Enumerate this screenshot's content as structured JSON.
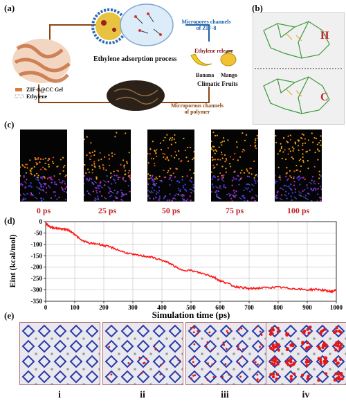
{
  "panels": {
    "a": "(a)",
    "b": "(b)",
    "c": "(c)",
    "d": "(d)",
    "e": "(e)"
  },
  "panel_a": {
    "micropores_label_line1": "Micropores channels",
    "micropores_label_line2": "of ZIF-8",
    "process_title": "Ethylene adsorption process",
    "release_label": "Ethylene release",
    "banana": "Banana",
    "mango": "Mango",
    "climatic_fruits": "Climatic Fruits",
    "legend_gel": "ZIF-8@CC Gel",
    "legend_ethylene": "Ethylene",
    "polymer_label_line1": "Microporous channels",
    "polymer_label_line2": "of polymer"
  },
  "panel_b": {
    "label_top": "H",
    "label_bottom": "C"
  },
  "panel_c": {
    "times": [
      "0 ps",
      "25 ps",
      "50 ps",
      "75 ps",
      "100 ps"
    ]
  },
  "panel_e": {
    "labels": [
      "i",
      "ii",
      "iii",
      "iv"
    ]
  },
  "colors": {
    "accent_red": "#c0262a",
    "arrow_brown": "#8b4513",
    "curve": "#ff1a1a",
    "label_blue": "#1a5fa8"
  },
  "chart_data": {
    "type": "line",
    "xlabel": "Simulation time (ps)",
    "ylabel": "Eint  (kcal/mol)",
    "xlim": [
      0,
      1000
    ],
    "ylim": [
      -350,
      0
    ],
    "xticks": [
      "0",
      "100",
      "200",
      "300",
      "400",
      "500",
      "600",
      "700",
      "800",
      "900",
      "1000"
    ],
    "yticks": [
      "0",
      "-50",
      "-100",
      "-150",
      "-200",
      "-250",
      "-300",
      "-350"
    ],
    "grid": true,
    "series": [
      {
        "x": [
          0,
          10,
          20,
          40,
          60,
          80,
          100,
          120,
          150,
          180,
          200,
          230,
          260,
          300,
          330,
          360,
          400,
          430,
          460,
          500,
          530,
          560,
          580,
          600,
          620,
          650,
          680,
          700,
          730,
          760,
          800,
          830,
          860,
          900,
          930,
          960,
          980,
          990,
          1000
        ],
        "values": [
          -5,
          -18,
          -25,
          -30,
          -32,
          -38,
          -55,
          -80,
          -95,
          -98,
          -105,
          -115,
          -130,
          -145,
          -150,
          -155,
          -170,
          -185,
          -210,
          -215,
          -225,
          -235,
          -245,
          -260,
          -268,
          -285,
          -290,
          -295,
          -292,
          -290,
          -288,
          -292,
          -295,
          -300,
          -297,
          -302,
          -308,
          -305,
          -300
        ]
      }
    ]
  }
}
